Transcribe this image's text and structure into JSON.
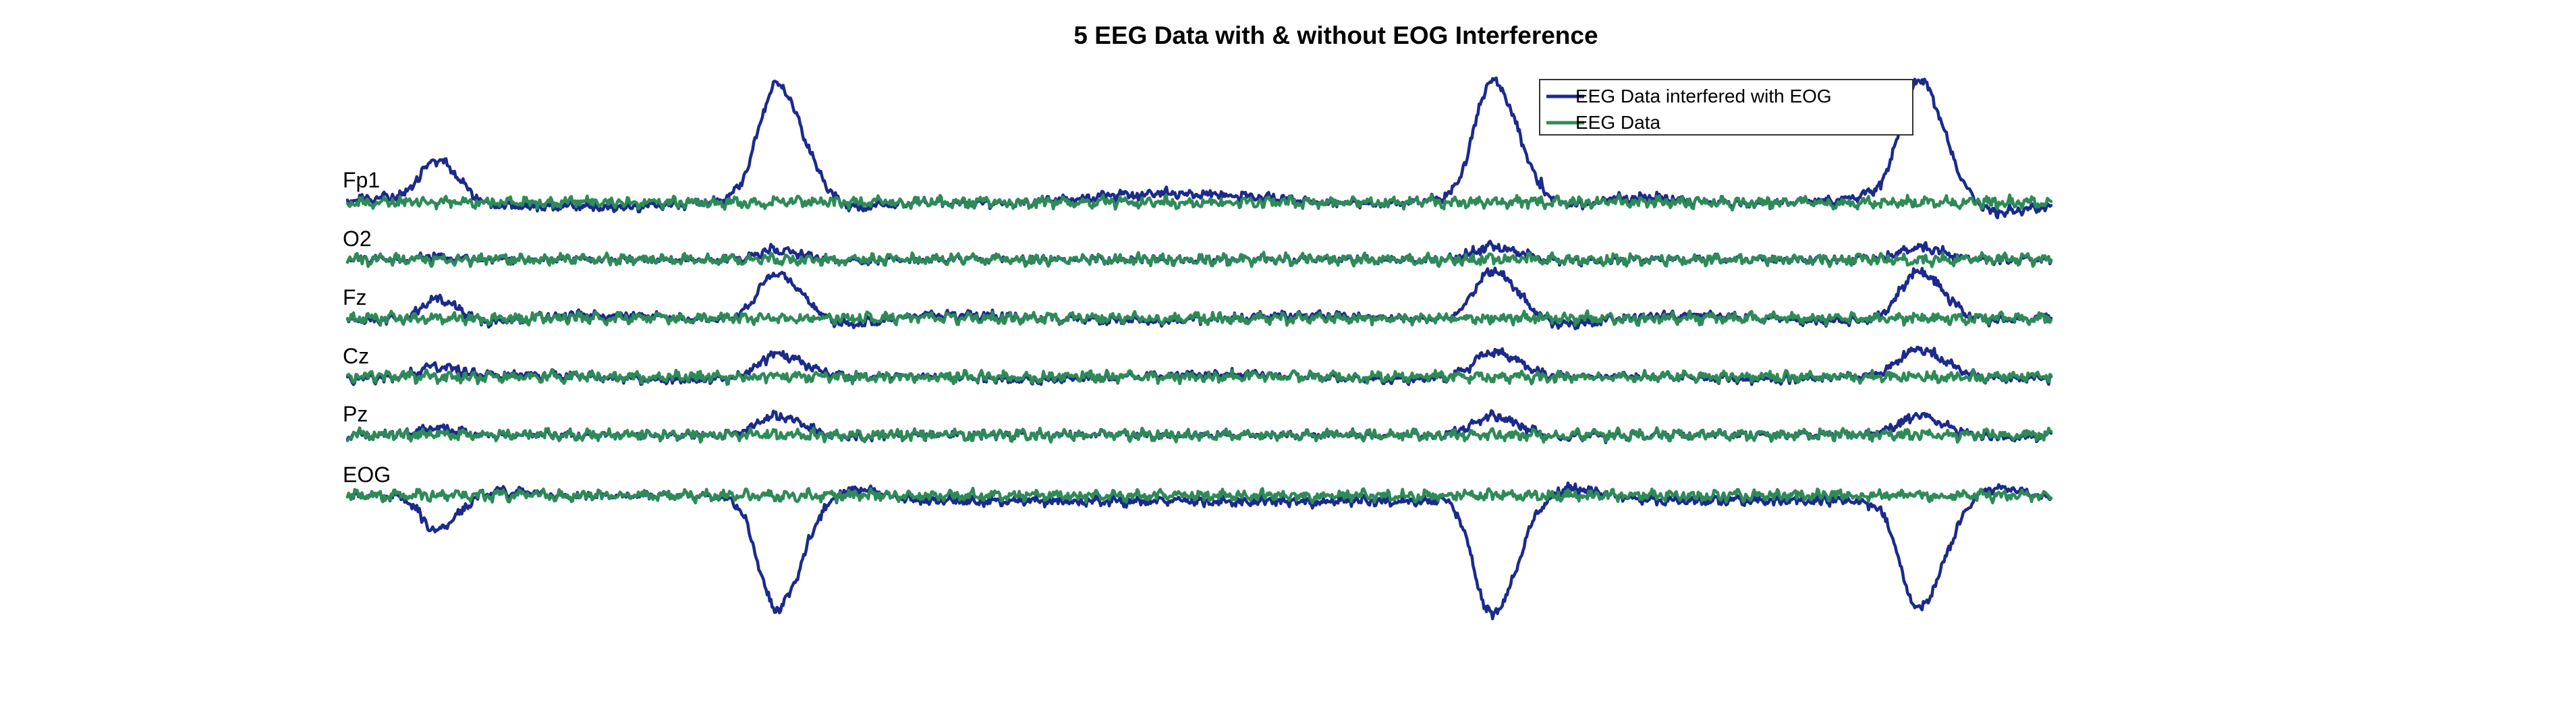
{
  "chart_data": {
    "type": "line",
    "title": "5 EEG Data with & without EOG Interference",
    "xlabel": "",
    "ylabel": "",
    "grid": false,
    "axes_visible": false,
    "legend_position": "top-right",
    "channels": [
      "Fp1",
      "O2",
      "Fz",
      "Cz",
      "Pz",
      "EOG"
    ],
    "series": [
      {
        "name": "EEG Data interfered with EOG",
        "color": "#1b2a8c",
        "blink_artifacts": [
          {
            "center": 0.052,
            "width": 0.01,
            "gains": [
              0.6,
              0.05,
              0.35,
              0.15,
              0.1,
              -0.55
            ]
          },
          {
            "center": 0.252,
            "width": 0.012,
            "gains": [
              1.8,
              0.15,
              0.75,
              0.35,
              0.3,
              -1.8
            ]
          },
          {
            "center": 0.672,
            "width": 0.012,
            "gains": [
              1.9,
              0.2,
              0.8,
              0.4,
              0.3,
              -1.9
            ]
          },
          {
            "center": 0.922,
            "width": 0.012,
            "gains": [
              1.9,
              0.2,
              0.75,
              0.4,
              0.3,
              -1.8
            ]
          }
        ]
      },
      {
        "name": "EEG Data",
        "color": "#2e8b57"
      }
    ]
  }
}
